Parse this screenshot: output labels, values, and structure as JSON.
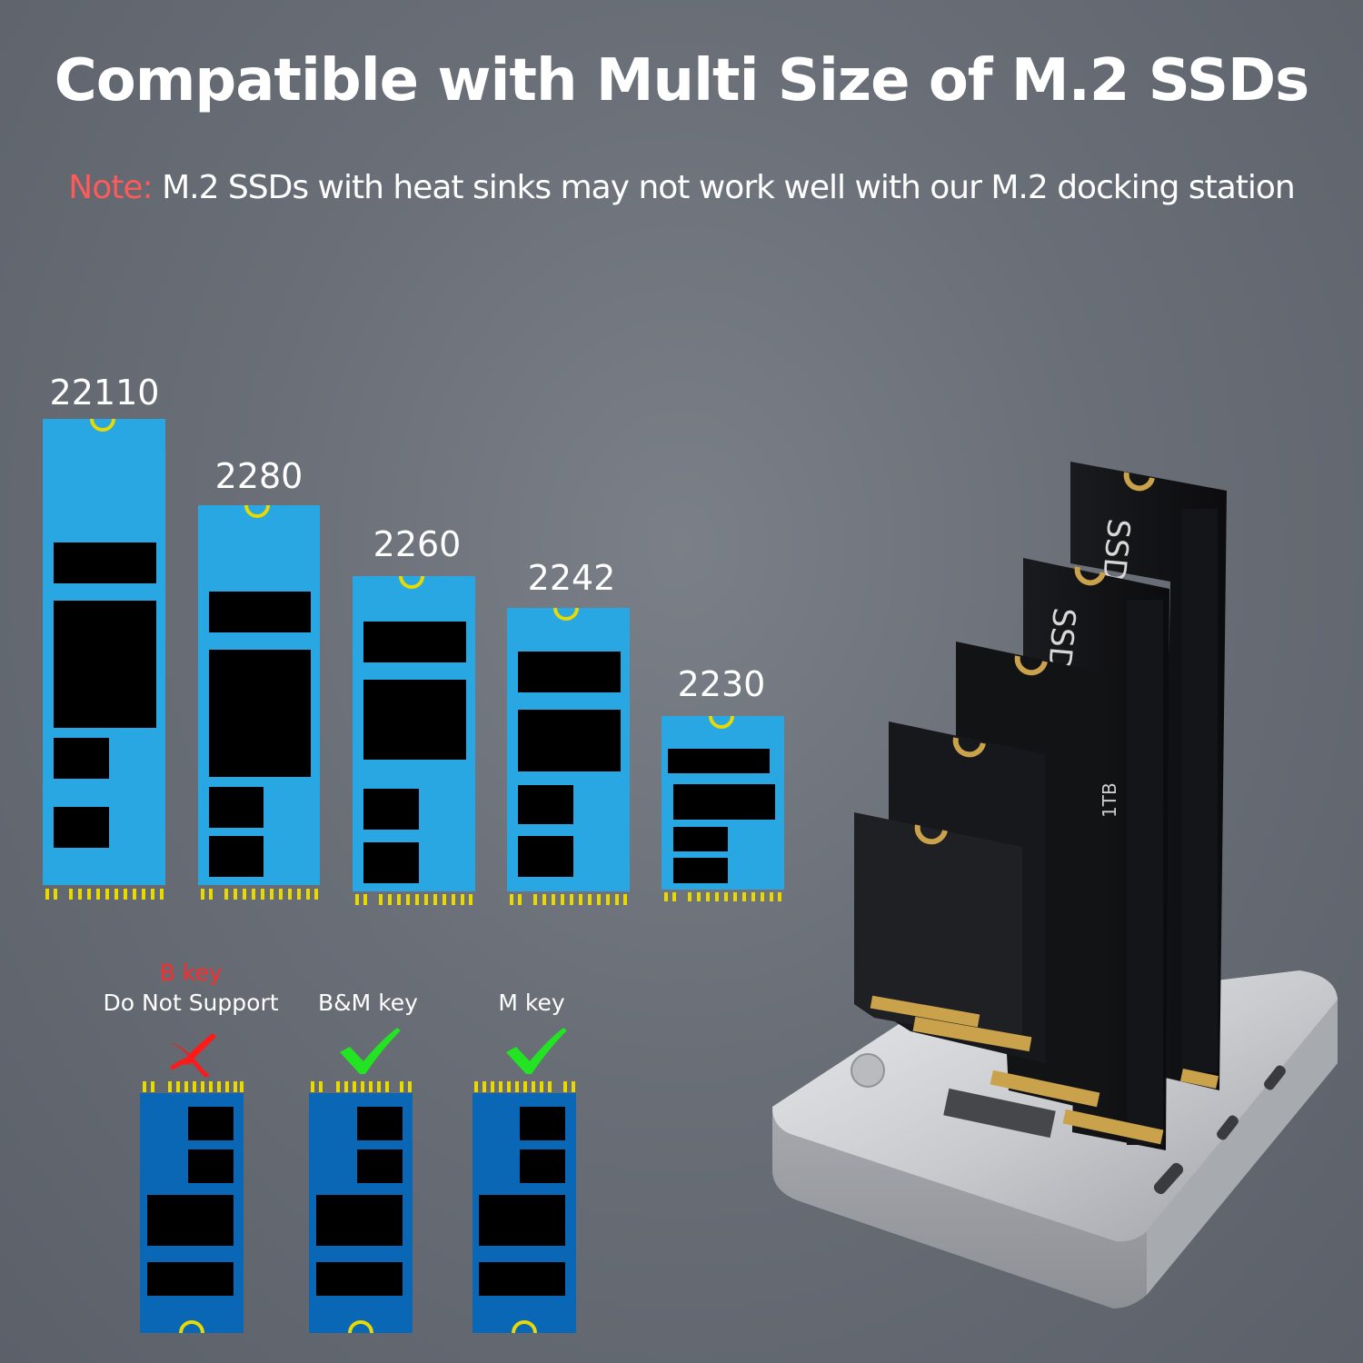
{
  "title": "Compatible with Multi Size of M.2 SSDs",
  "note": {
    "label": "Note:",
    "text": " M.2 SSDs with heat sinks may not work well with our M.2 docking station"
  },
  "sizes": [
    "22110",
    "2280",
    "2260",
    "2242",
    "2230"
  ],
  "keys": [
    {
      "top_label": "B key",
      "label": "Do Not Support",
      "status": "cross-icon"
    },
    {
      "label": "B&M key",
      "status": "check-icon"
    },
    {
      "label": "M key",
      "status": "check-icon"
    }
  ],
  "colors": {
    "ssd_light": "#29a7e2",
    "ssd_dark": "#0a67b6",
    "notch": "#e8d900",
    "note_label": "#ff5a5a",
    "cross": "#ff1a1a",
    "check": "#22e422"
  },
  "product_image": "m2-docking-station-with-ssds"
}
